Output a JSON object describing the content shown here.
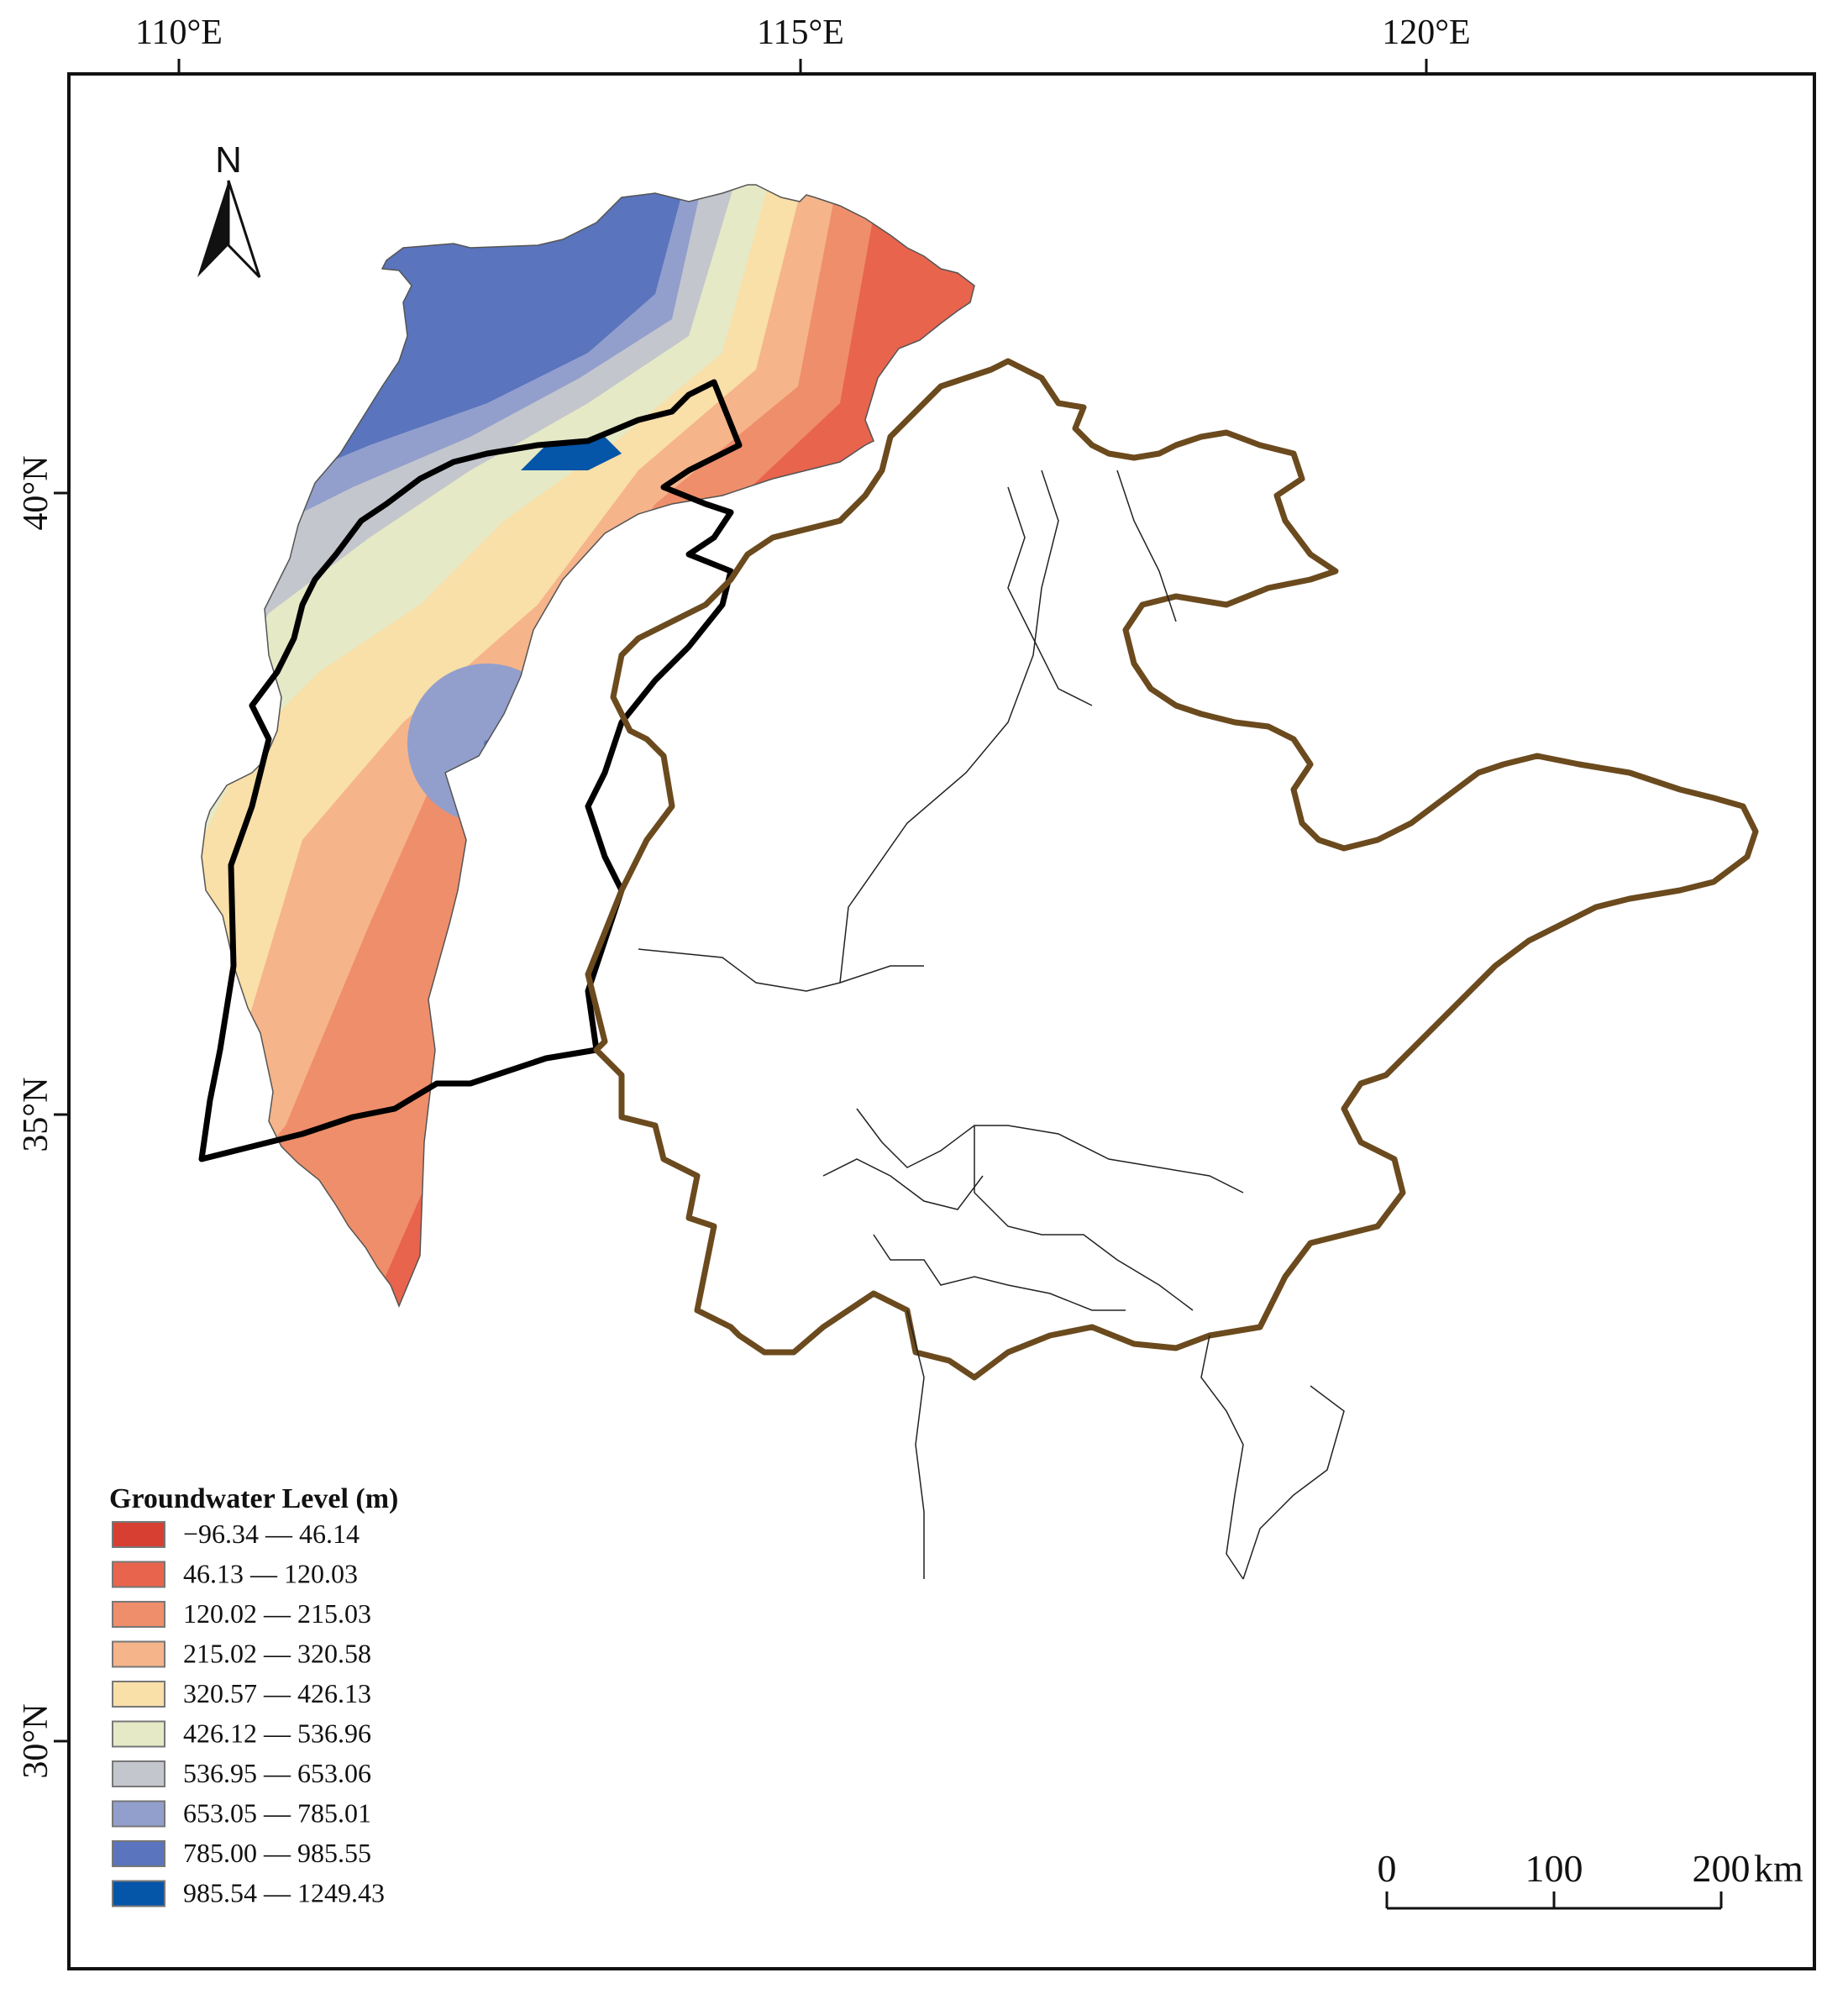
{
  "axes": {
    "longitude_ticks": [
      "110°E",
      "115°E",
      "120°E"
    ],
    "latitude_ticks": [
      "40°N",
      "35°N",
      "30°N"
    ]
  },
  "north_arrow": {
    "label": "N"
  },
  "legend": {
    "title": "Groundwater Level (m)",
    "classes": [
      {
        "label": "−96.34 — 46.14",
        "color": "#d73f33"
      },
      {
        "label": "46.13 — 120.03",
        "color": "#e8644d"
      },
      {
        "label": "120.02 — 215.03",
        "color": "#ef8e6a"
      },
      {
        "label": "215.02 — 320.58",
        "color": "#f6b48a"
      },
      {
        "label": "320.57 — 426.13",
        "color": "#f9dfa8"
      },
      {
        "label": "426.12 — 536.96",
        "color": "#e6e9c6"
      },
      {
        "label": "536.95 — 653.06",
        "color": "#c3c6cc"
      },
      {
        "label": "653.05 — 785.01",
        "color": "#929fcd"
      },
      {
        "label": "785.00 — 985.55",
        "color": "#5a74bd"
      },
      {
        "label": "985.54 — 1249.43",
        "color": "#0555a8"
      }
    ]
  },
  "scale_bar": {
    "labels": [
      "0",
      "100",
      "200"
    ],
    "unit": "km"
  },
  "colors": {
    "province_outline": "#6b4a1e",
    "region_outline": "#000000",
    "county_line": "#222222"
  }
}
